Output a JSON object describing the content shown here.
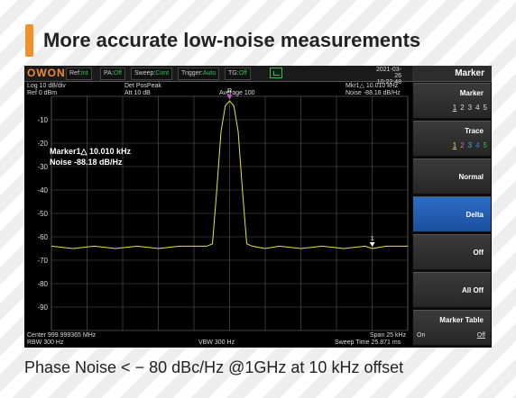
{
  "headline": "More accurate low-noise measurements",
  "footer": "Phase Noise <  − 80 dBc/Hz @1GHz at 10 kHz offset",
  "topbar": {
    "logo": "OWON",
    "ref": {
      "label": "Ref:",
      "value": "Int"
    },
    "pa": {
      "label": "PA:",
      "value": "Off"
    },
    "sweep": {
      "label": "Sweep:",
      "value": "Cont"
    },
    "trigger": {
      "label": "Trigger:",
      "value": "Auto"
    },
    "tg": {
      "label": "TG:",
      "value": "Off"
    },
    "date": "2021-03-26",
    "time": "10:22:48",
    "menu_title": "Marker"
  },
  "info": {
    "scale": "Log 10 dB/div",
    "ref_level": "Ref 0 dBm",
    "detector": "Det PosPeak",
    "atten": "Att 10 dB",
    "average": "Average 100",
    "mkr_readout": "Mkr1△  10.010 kHz",
    "noise_readout": "Noise  -88.18 dB/Hz",
    "center": "Center 999.999365 MHz",
    "rbw": "RBW 300 Hz",
    "vbw": "VBW 300 Hz",
    "span": "Span 25 kHz",
    "sweep_time": "Sweep Time 25.871 ms"
  },
  "marker_box": {
    "line1": "Marker1△  10.010 kHz",
    "line2": "Noise  -88.18 dB/Hz",
    "marker_ref_label": "R",
    "marker_label": "1"
  },
  "softkeys": [
    {
      "label": "Marker",
      "options": [
        "1",
        "2",
        "3",
        "4",
        "5"
      ],
      "selected": "1"
    },
    {
      "label": "Trace",
      "options": [
        "1",
        "2",
        "3",
        "4",
        "5"
      ],
      "selected": "1"
    },
    {
      "label": "Normal"
    },
    {
      "label": "Delta",
      "active": true
    },
    {
      "label": "Off"
    },
    {
      "label": "All Off"
    },
    {
      "label": "Marker Table",
      "on": "On",
      "off": "Off"
    }
  ],
  "chart_data": {
    "type": "line",
    "y_ticks": [
      "-10",
      "-20",
      "-30",
      "-40",
      "-50",
      "-60",
      "-70",
      "-80",
      "-90"
    ],
    "ylim": [
      -100,
      0
    ],
    "xlim": [
      -12.5,
      12.5
    ],
    "x_unit": "kHz offset from center",
    "y_unit": "dBm",
    "grid": true,
    "trace_color": "#e6e636",
    "series": [
      {
        "x": [
          -12.5,
          -11,
          -9.5,
          -8,
          -6.5,
          -5,
          -3.5,
          -2.5,
          -1.6,
          -1.2,
          -0.9,
          -0.6,
          -0.3,
          0,
          0.3,
          0.6,
          0.9,
          1.2,
          1.6,
          2.5,
          3.5,
          5,
          6.5,
          8,
          9.5,
          10.01,
          11,
          12.5
        ],
        "y": [
          -64,
          -65,
          -64,
          -65,
          -64,
          -65,
          -64,
          -64,
          -64,
          -63,
          -40,
          -15,
          -4,
          -2,
          -4,
          -15,
          -40,
          -63,
          -64,
          -65,
          -64,
          -65,
          -64,
          -65,
          -64,
          -65,
          -64,
          -64
        ]
      }
    ],
    "markers": [
      {
        "label": "R",
        "x": 0,
        "y": -2
      },
      {
        "label": "1",
        "x": 10.01,
        "y": -65
      }
    ]
  }
}
